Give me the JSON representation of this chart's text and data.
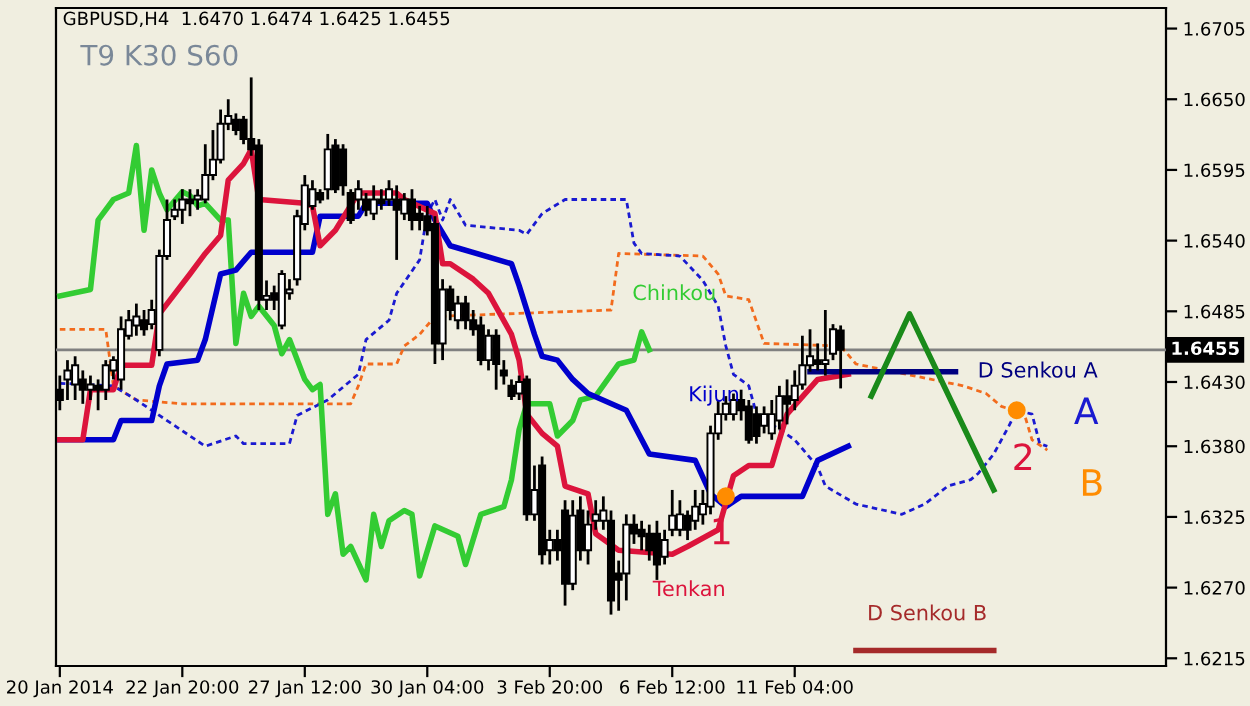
{
  "chart_data": {
    "type": "candlestick",
    "title": "GBPUSD,H4  1.6470 1.6474 1.6425 1.6455",
    "subtitle": "T9 K30 S60",
    "categories": [
      "20 Jan 2014",
      null,
      null,
      null,
      null,
      null,
      null,
      null,
      null,
      null,
      null,
      null,
      null,
      null,
      null,
      null,
      "22 Jan 20:00",
      null,
      null,
      null,
      null,
      null,
      null,
      null,
      null,
      null,
      null,
      null,
      null,
      null,
      null,
      null,
      "27 Jan 12:00",
      null,
      null,
      null,
      null,
      null,
      null,
      null,
      null,
      null,
      null,
      null,
      null,
      null,
      null,
      null,
      "30 Jan 04:00",
      null,
      null,
      null,
      null,
      null,
      null,
      null,
      null,
      null,
      null,
      null,
      null,
      null,
      null,
      null,
      "3 Feb 20:00",
      null,
      null,
      null,
      null,
      null,
      null,
      null,
      null,
      null,
      null,
      null,
      null,
      null,
      null,
      null,
      "6 Feb 12:00",
      null,
      null,
      null,
      null,
      null,
      null,
      null,
      null,
      null,
      null,
      null,
      null,
      null,
      null,
      null,
      "11 Feb 04:00",
      null,
      null,
      null,
      null,
      null,
      null,
      null,
      null,
      null,
      null,
      null,
      null,
      null,
      null,
      null,
      null,
      null,
      null,
      null,
      null,
      null,
      null,
      null,
      null,
      null,
      null,
      null,
      null,
      null,
      null,
      null,
      null,
      null,
      null,
      null,
      null,
      null,
      null,
      null,
      null,
      null,
      null,
      null,
      null,
      null,
      null,
      null,
      null
    ],
    "ohlc": [
      [
        1.6424,
        1.6435,
        1.6408,
        1.6416
      ],
      [
        1.6432,
        1.6447,
        1.6416,
        1.6439
      ],
      [
        1.6428,
        1.645,
        1.6416,
        1.6443
      ],
      [
        1.6432,
        1.6439,
        1.6413,
        1.6424
      ],
      [
        1.6424,
        1.6435,
        1.6416,
        1.6428
      ],
      [
        1.6427,
        1.6432,
        1.6408,
        1.6424
      ],
      [
        1.6424,
        1.6447,
        1.6416,
        1.6443
      ],
      [
        1.6439,
        1.645,
        1.6432,
        1.6447
      ],
      [
        1.6432,
        1.6481,
        1.6424,
        1.6471
      ],
      [
        1.6466,
        1.6486,
        1.6463,
        1.6478
      ],
      [
        1.6474,
        1.6491,
        1.6466,
        1.6481
      ],
      [
        1.6478,
        1.6486,
        1.6466,
        1.6471
      ],
      [
        1.6475,
        1.6494,
        1.6471,
        1.6486
      ],
      [
        1.6455,
        1.6533,
        1.645,
        1.6528
      ],
      [
        1.6528,
        1.6572,
        1.6525,
        1.6556
      ],
      [
        1.6559,
        1.6572,
        1.6556,
        1.6564
      ],
      [
        1.6564,
        1.658,
        1.6553,
        1.6572
      ],
      [
        1.6572,
        1.658,
        1.6559,
        1.6569
      ],
      [
        1.6572,
        1.658,
        1.6564,
        1.6575
      ],
      [
        1.6572,
        1.6615,
        1.6569,
        1.6591
      ],
      [
        1.6591,
        1.6626,
        1.6587,
        1.6603
      ],
      [
        1.6603,
        1.6642,
        1.66,
        1.6631
      ],
      [
        1.6631,
        1.665,
        1.6626,
        1.6637
      ],
      [
        1.6634,
        1.6639,
        1.6622,
        1.6626
      ],
      [
        1.6634,
        1.6637,
        1.6615,
        1.6619
      ],
      [
        1.6619,
        1.6667,
        1.6606,
        1.6611
      ],
      [
        1.6614,
        1.6619,
        1.6486,
        1.6494
      ],
      [
        1.6494,
        1.6509,
        1.6486,
        1.6497
      ],
      [
        1.6499,
        1.6505,
        1.6486,
        1.6494
      ],
      [
        1.6474,
        1.6517,
        1.6471,
        1.6514
      ],
      [
        1.6499,
        1.651,
        1.6494,
        1.6502
      ],
      [
        1.651,
        1.6564,
        1.6505,
        1.6559
      ],
      [
        1.6553,
        1.6591,
        1.6548,
        1.6583
      ],
      [
        1.6567,
        1.6587,
        1.6564,
        1.658
      ],
      [
        1.6577,
        1.658,
        1.6569,
        1.6572
      ],
      [
        1.658,
        1.6623,
        1.6572,
        1.6611
      ],
      [
        1.6614,
        1.6619,
        1.6577,
        1.658
      ],
      [
        1.6611,
        1.6615,
        1.6575,
        1.6583
      ],
      [
        1.6577,
        1.658,
        1.6553,
        1.6556
      ],
      [
        1.6572,
        1.6587,
        1.6564,
        1.658
      ],
      [
        1.6572,
        1.6577,
        1.6559,
        1.6564
      ],
      [
        1.6561,
        1.6583,
        1.6556,
        1.6572
      ],
      [
        1.6572,
        1.658,
        1.6564,
        1.6569
      ],
      [
        1.6572,
        1.6587,
        1.6567,
        1.658
      ],
      [
        1.6572,
        1.6583,
        1.6525,
        1.6564
      ],
      [
        1.6561,
        1.6577,
        1.6556,
        1.6572
      ],
      [
        1.6572,
        1.658,
        1.6548,
        1.6556
      ],
      [
        1.6561,
        1.6567,
        1.6548,
        1.6556
      ],
      [
        1.6559,
        1.6567,
        1.6544,
        1.6548
      ],
      [
        1.6553,
        1.6559,
        1.6444,
        1.646
      ],
      [
        1.646,
        1.651,
        1.6447,
        1.6502
      ],
      [
        1.6502,
        1.6505,
        1.6478,
        1.6486
      ],
      [
        1.6478,
        1.6497,
        1.6471,
        1.6491
      ],
      [
        1.6491,
        1.6497,
        1.6471,
        1.6478
      ],
      [
        1.6478,
        1.6486,
        1.6466,
        1.6471
      ],
      [
        1.6474,
        1.6481,
        1.6443,
        1.6447
      ],
      [
        1.6447,
        1.6471,
        1.6439,
        1.6466
      ],
      [
        1.6466,
        1.6471,
        1.6424,
        1.6444
      ],
      [
        1.6439,
        1.6447,
        1.6428,
        1.6435
      ],
      [
        1.6427,
        1.6432,
        1.6416,
        1.6419
      ],
      [
        1.6421,
        1.6435,
        1.6416,
        1.643
      ],
      [
        1.6432,
        1.6435,
        1.6322,
        1.6327
      ],
      [
        1.6327,
        1.6365,
        1.6322,
        1.6346
      ],
      [
        1.6365,
        1.6372,
        1.6288,
        1.6296
      ],
      [
        1.6299,
        1.6315,
        1.6288,
        1.6307
      ],
      [
        1.6307,
        1.6315,
        1.6291,
        1.6299
      ],
      [
        1.633,
        1.6338,
        1.6256,
        1.6273
      ],
      [
        1.6273,
        1.6338,
        1.6268,
        1.6326
      ],
      [
        1.633,
        1.6341,
        1.6291,
        1.6299
      ],
      [
        1.6299,
        1.633,
        1.6288,
        1.6319
      ],
      [
        1.6322,
        1.6338,
        1.6315,
        1.6327
      ],
      [
        1.6322,
        1.6341,
        1.6315,
        1.633
      ],
      [
        1.6322,
        1.633,
        1.6249,
        1.626
      ],
      [
        1.6281,
        1.6291,
        1.6252,
        1.6276
      ],
      [
        1.6281,
        1.6327,
        1.626,
        1.6319
      ],
      [
        1.6319,
        1.6327,
        1.6304,
        1.6312
      ],
      [
        1.6315,
        1.6322,
        1.6299,
        1.631
      ],
      [
        1.6312,
        1.6319,
        1.6291,
        1.6299
      ],
      [
        1.6312,
        1.6322,
        1.6276,
        1.6288
      ],
      [
        1.6294,
        1.6315,
        1.6288,
        1.6307
      ],
      [
        1.6315,
        1.6346,
        1.631,
        1.6326
      ],
      [
        1.6315,
        1.6338,
        1.631,
        1.6327
      ],
      [
        1.6326,
        1.633,
        1.6307,
        1.6315
      ],
      [
        1.6322,
        1.6346,
        1.6315,
        1.6333
      ],
      [
        1.6327,
        1.6346,
        1.6319,
        1.6335
      ],
      [
        1.6333,
        1.6396,
        1.6327,
        1.639
      ],
      [
        1.639,
        1.6416,
        1.6385,
        1.6405
      ],
      [
        1.6405,
        1.6419,
        1.64,
        1.6413
      ],
      [
        1.6405,
        1.6421,
        1.64,
        1.6416
      ],
      [
        1.6416,
        1.6424,
        1.64,
        1.6408
      ],
      [
        1.6411,
        1.6416,
        1.6382,
        1.6385
      ],
      [
        1.6405,
        1.6411,
        1.6382,
        1.6388
      ],
      [
        1.6396,
        1.6411,
        1.639,
        1.6405
      ],
      [
        1.639,
        1.6416,
        1.6385,
        1.6405
      ],
      [
        1.64,
        1.6427,
        1.6393,
        1.6419
      ],
      [
        1.6419,
        1.6432,
        1.6397,
        1.6413
      ],
      [
        1.6416,
        1.6439,
        1.6408,
        1.6427
      ],
      [
        1.6428,
        1.6466,
        1.6424,
        1.6443
      ],
      [
        1.6443,
        1.6471,
        1.6438,
        1.645
      ],
      [
        1.6447,
        1.646,
        1.6439,
        1.6444
      ],
      [
        1.6444,
        1.6486,
        1.6435,
        1.6447
      ],
      [
        1.6452,
        1.6475,
        1.6447,
        1.6471
      ],
      [
        1.647,
        1.6474,
        1.6425,
        1.6455
      ],
      null,
      null,
      null,
      null,
      null,
      null,
      null,
      null,
      null,
      null,
      null,
      null,
      null,
      null,
      null,
      null,
      null,
      null,
      null,
      null,
      null,
      null,
      null,
      null,
      null,
      null,
      null,
      null,
      null,
      null,
      null,
      null,
      null,
      null,
      null,
      null,
      null,
      null,
      null,
      null,
      null,
      null
    ],
    "series": [
      {
        "type": "line",
        "color": "#f26b1d",
        "line_style": "dashed",
        "values": [
          1.6471,
          null,
          null,
          null,
          null,
          null,
          1.6471,
          1.6427,
          null,
          null,
          1.6416,
          null,
          null,
          null,
          null,
          null,
          1.6413,
          null,
          null,
          null,
          null,
          null,
          null,
          null,
          null,
          null,
          null,
          null,
          null,
          null,
          null,
          null,
          null,
          null,
          null,
          null,
          null,
          null,
          1.6413,
          1.6427,
          1.6444,
          null,
          null,
          null,
          1.6444,
          1.6458,
          null,
          1.6467,
          null,
          1.6481,
          null,
          null,
          null,
          null,
          null,
          null,
          null,
          null,
          null,
          null,
          null,
          null,
          null,
          null,
          null,
          null,
          null,
          null,
          null,
          null,
          null,
          null,
          1.6486,
          1.653,
          null,
          null,
          null,
          null,
          null,
          null,
          null,
          null,
          null,
          null,
          1.6528,
          null,
          1.6514,
          1.6497,
          null,
          null,
          1.6494,
          null,
          1.646,
          null,
          null,
          null,
          null,
          null,
          null,
          null,
          null,
          null,
          1.6458,
          null,
          1.6444,
          null,
          null,
          null,
          null,
          null,
          null,
          null,
          null,
          null,
          null,
          null,
          null,
          null,
          1.6427,
          null,
          null,
          1.6421,
          null,
          1.6411,
          null,
          null,
          1.6405,
          1.6385,
          null,
          1.6377,
          null,
          null,
          null,
          null,
          null,
          null,
          null,
          null,
          null,
          null,
          null,
          null,
          null,
          null,
          null
        ]
      },
      {
        "type": "line",
        "color": "#1a1ad0",
        "line_style": "dashed",
        "values": [
          1.6429,
          null,
          null,
          null,
          null,
          null,
          null,
          1.6427,
          null,
          null,
          1.6416,
          null,
          null,
          null,
          null,
          1.6396,
          null,
          null,
          null,
          1.638,
          null,
          null,
          null,
          1.6388,
          1.6382,
          null,
          null,
          null,
          null,
          null,
          1.6382,
          1.6404,
          null,
          null,
          null,
          1.6416,
          null,
          null,
          null,
          1.6436,
          1.6463,
          null,
          null,
          1.6478,
          1.6499,
          null,
          null,
          1.6525,
          1.6561,
          1.6572,
          1.6556,
          1.6572,
          null,
          1.6552,
          null,
          null,
          null,
          null,
          null,
          null,
          1.6548,
          1.6545,
          null,
          1.6561,
          null,
          null,
          1.6572,
          null,
          null,
          null,
          null,
          null,
          null,
          null,
          1.6572,
          1.6538,
          1.653,
          null,
          null,
          null,
          null,
          1.6528,
          null,
          null,
          1.6509,
          null,
          1.6489,
          1.6458,
          1.6436,
          null,
          1.6427,
          1.6405,
          null,
          null,
          null,
          null,
          1.6385,
          null,
          null,
          1.6364,
          1.6349,
          null,
          null,
          null,
          1.6335,
          null,
          null,
          null,
          null,
          null,
          1.6327,
          null,
          null,
          1.6335,
          null,
          null,
          1.6349,
          null,
          null,
          1.6354,
          1.6359,
          null,
          1.6374,
          null,
          1.6396,
          1.6408,
          null,
          1.6405,
          1.6382,
          1.638,
          null,
          null,
          null,
          null,
          null,
          null,
          null,
          null,
          null,
          null,
          null,
          null,
          null,
          null,
          null
        ]
      },
      {
        "type": "line",
        "name": "Chinkou",
        "color": "#33cc33",
        "line_style": "solid",
        "values": [
          1.6497,
          null,
          null,
          null,
          1.6502,
          1.6556,
          null,
          1.6572,
          null,
          1.6577,
          1.6614,
          1.6548,
          1.6595,
          1.6577,
          1.6564,
          null,
          1.6578,
          1.6575,
          1.6567,
          1.6569,
          null,
          1.6556,
          1.6556,
          1.646,
          1.6499,
          1.6481,
          1.6489,
          null,
          1.6474,
          1.6452,
          1.6463,
          null,
          1.6432,
          1.6424,
          1.6428,
          1.6327,
          1.6343,
          1.6296,
          1.6302,
          null,
          1.6276,
          1.6327,
          1.6302,
          1.6322,
          null,
          1.633,
          1.6327,
          1.6279,
          null,
          1.6318,
          null,
          null,
          1.631,
          1.6288,
          null,
          1.6327,
          null,
          null,
          1.6333,
          1.6354,
          1.6393,
          1.6413,
          null,
          null,
          1.6413,
          1.6388,
          null,
          1.64,
          1.6416,
          null,
          1.6419,
          null,
          null,
          1.6444,
          null,
          1.6447,
          1.6469,
          1.6455,
          null,
          null,
          null,
          null,
          null,
          null,
          null,
          null,
          null,
          null,
          null,
          null,
          null,
          null,
          null,
          null,
          null,
          null,
          null,
          null,
          null,
          null,
          null,
          null,
          null,
          null,
          null,
          null,
          null,
          null,
          null,
          null,
          null,
          null,
          null,
          null,
          null,
          null,
          null,
          null,
          null,
          null,
          null,
          null,
          null,
          null,
          null,
          null,
          null,
          null,
          null,
          null,
          null,
          null,
          null,
          null,
          null,
          null,
          null,
          null,
          null,
          null,
          null,
          null,
          null,
          null,
          null
        ]
      },
      {
        "type": "line",
        "name": "Kijun",
        "color": "#0000cc",
        "line_style": "solid",
        "values": [
          1.6385,
          null,
          null,
          null,
          null,
          null,
          null,
          1.6385,
          1.64,
          null,
          null,
          null,
          1.64,
          1.6427,
          1.6444,
          null,
          null,
          null,
          1.6447,
          1.6463,
          null,
          1.6514,
          null,
          1.6517,
          null,
          1.6531,
          null,
          null,
          null,
          null,
          null,
          null,
          null,
          1.6531,
          1.6559,
          null,
          null,
          null,
          null,
          1.6559,
          1.6569,
          null,
          null,
          null,
          null,
          null,
          null,
          null,
          1.6569,
          1.6556,
          null,
          1.6536,
          null,
          null,
          null,
          null,
          null,
          null,
          null,
          1.6522,
          1.6505,
          null,
          1.6467,
          1.645,
          null,
          1.6447,
          null,
          1.6432,
          null,
          1.6421,
          null,
          null,
          null,
          null,
          1.6408,
          null,
          null,
          1.6374,
          null,
          null,
          null,
          null,
          null,
          1.6369,
          null,
          1.6343,
          null,
          1.6333,
          null,
          1.6341,
          null,
          null,
          null,
          null,
          null,
          null,
          null,
          1.6341,
          null,
          1.6369,
          null,
          null,
          null,
          1.638,
          null,
          null,
          null,
          null,
          null,
          null,
          null,
          null,
          null,
          null,
          null,
          null,
          null,
          null,
          null,
          null,
          null,
          null,
          null,
          null,
          null,
          null,
          null,
          null,
          null,
          null,
          null,
          null,
          null,
          null,
          null,
          null,
          null,
          null,
          null,
          null,
          null,
          null,
          null,
          null,
          null
        ]
      },
      {
        "type": "line",
        "name": "Tenkan",
        "color": "#dc143c",
        "line_style": "solid",
        "values": [
          1.6385,
          null,
          null,
          1.6385,
          1.6424,
          null,
          null,
          1.6424,
          1.6443,
          null,
          null,
          null,
          1.6443,
          1.6483,
          null,
          null,
          null,
          1.6514,
          null,
          1.653,
          null,
          1.6544,
          1.6587,
          null,
          1.66,
          1.6611,
          1.6572,
          null,
          null,
          null,
          null,
          null,
          1.6569,
          1.6567,
          1.6536,
          null,
          1.6548,
          null,
          null,
          1.6577,
          null,
          null,
          null,
          null,
          1.6577,
          1.6572,
          null,
          null,
          null,
          1.6561,
          1.6522,
          1.6522,
          null,
          null,
          1.651,
          null,
          1.6499,
          null,
          null,
          1.6467,
          1.6447,
          1.6405,
          null,
          1.639,
          null,
          1.638,
          1.6349,
          null,
          null,
          1.6343,
          1.6312,
          null,
          null,
          1.6299,
          null,
          null,
          null,
          null,
          null,
          null,
          1.6296,
          null,
          1.6302,
          null,
          null,
          null,
          1.6315,
          null,
          1.6357,
          null,
          1.6365,
          null,
          null,
          1.6365,
          null,
          1.6405,
          null,
          null,
          null,
          1.6432,
          null,
          null,
          null,
          1.6436,
          null,
          null,
          null,
          null,
          null,
          null,
          null,
          null,
          null,
          null,
          null,
          null,
          null,
          null,
          null,
          null,
          null,
          null,
          null,
          null,
          null,
          null,
          null,
          null,
          null,
          null,
          null,
          null,
          null,
          null,
          null,
          null,
          null,
          null,
          null,
          null,
          null,
          null,
          null,
          null,
          null
        ]
      },
      {
        "type": "line",
        "name": "D Senkou A",
        "color": "#000080",
        "line_style": "solid",
        "values": [
          null,
          null,
          null,
          null,
          null,
          null,
          null,
          null,
          null,
          null,
          null,
          null,
          null,
          null,
          null,
          null,
          null,
          null,
          null,
          null,
          null,
          null,
          null,
          null,
          null,
          null,
          null,
          null,
          null,
          null,
          null,
          null,
          null,
          null,
          null,
          null,
          null,
          null,
          null,
          null,
          null,
          null,
          null,
          null,
          null,
          null,
          null,
          null,
          null,
          null,
          null,
          null,
          null,
          null,
          null,
          null,
          null,
          null,
          null,
          null,
          null,
          null,
          null,
          null,
          null,
          null,
          null,
          null,
          null,
          null,
          null,
          null,
          null,
          null,
          null,
          null,
          null,
          null,
          null,
          null,
          null,
          null,
          null,
          null,
          null,
          null,
          null,
          null,
          null,
          null,
          null,
          null,
          null,
          null,
          null,
          null,
          null,
          null,
          1.6438,
          null,
          null,
          null,
          null,
          null,
          null,
          null,
          null,
          null,
          null,
          null,
          null,
          null,
          null,
          null,
          null,
          null,
          null,
          1.6438,
          null,
          null,
          null,
          null,
          null,
          null,
          null,
          null,
          null,
          null,
          null,
          null,
          null,
          null,
          null,
          null,
          null,
          null,
          null,
          null,
          null,
          null,
          null,
          null,
          null,
          null,
          null
        ]
      },
      {
        "type": "line",
        "name": "D Senkou B",
        "color": "#a52a2a",
        "line_style": "solid",
        "values": [
          null,
          null,
          null,
          null,
          null,
          null,
          null,
          null,
          null,
          null,
          null,
          null,
          null,
          null,
          null,
          null,
          null,
          null,
          null,
          null,
          null,
          null,
          null,
          null,
          null,
          null,
          null,
          null,
          null,
          null,
          null,
          null,
          null,
          null,
          null,
          null,
          null,
          null,
          null,
          null,
          null,
          null,
          null,
          null,
          null,
          null,
          null,
          null,
          null,
          null,
          null,
          null,
          null,
          null,
          null,
          null,
          null,
          null,
          null,
          null,
          null,
          null,
          null,
          null,
          null,
          null,
          null,
          null,
          null,
          null,
          null,
          null,
          null,
          null,
          null,
          null,
          null,
          null,
          null,
          null,
          null,
          null,
          null,
          null,
          null,
          null,
          null,
          null,
          null,
          null,
          null,
          null,
          null,
          null,
          null,
          null,
          null,
          null,
          null,
          null,
          null,
          null,
          null,
          null,
          1.6221,
          null,
          null,
          null,
          null,
          null,
          null,
          null,
          null,
          null,
          null,
          null,
          null,
          null,
          null,
          null,
          null,
          null,
          1.6221,
          null,
          null,
          null,
          null,
          null,
          null,
          null,
          null,
          null,
          null,
          null,
          null,
          null,
          null,
          null,
          null,
          null,
          null,
          null,
          null,
          null,
          null
        ]
      },
      {
        "type": "line",
        "color": "#1a8a1a",
        "line_style": "solid",
        "values": [
          null,
          null,
          null,
          null,
          null,
          null,
          null,
          null,
          null,
          null,
          null,
          null,
          null,
          null,
          null,
          null,
          null,
          null,
          null,
          null,
          null,
          null,
          null,
          null,
          null,
          null,
          null,
          null,
          null,
          null,
          null,
          null,
          null,
          null,
          null,
          null,
          null,
          null,
          null,
          null,
          null,
          null,
          null,
          null,
          null,
          null,
          null,
          null,
          null,
          null,
          null,
          null,
          null,
          null,
          null,
          null,
          null,
          null,
          null,
          null,
          null,
          null,
          null,
          null,
          null,
          null,
          null,
          null,
          null,
          null,
          null,
          null,
          null,
          null,
          null,
          null,
          null,
          null,
          null,
          null,
          null,
          null,
          null,
          null,
          null,
          null,
          null,
          null,
          null,
          null,
          null,
          null,
          null,
          null,
          null,
          null,
          null,
          null,
          null,
          null,
          null,
          null,
          null,
          null,
          null,
          null,
          1.6419,
          null,
          null,
          null,
          null,
          1.6483,
          null,
          null,
          null,
          null,
          null,
          null,
          null,
          null,
          null,
          null,
          1.6346,
          null,
          null,
          null,
          null,
          null,
          null,
          null,
          null,
          null,
          null,
          null,
          null,
          null,
          null,
          null,
          null,
          null,
          null,
          null,
          null,
          null,
          null
        ]
      },
      {
        "type": "scatter",
        "color": "#ff8c00",
        "marker": "circle",
        "values": [
          null,
          null,
          null,
          null,
          null,
          null,
          null,
          null,
          null,
          null,
          null,
          null,
          null,
          null,
          null,
          null,
          null,
          null,
          null,
          null,
          null,
          null,
          null,
          null,
          null,
          null,
          null,
          null,
          null,
          null,
          null,
          null,
          null,
          null,
          null,
          null,
          null,
          null,
          null,
          null,
          null,
          null,
          null,
          null,
          null,
          null,
          null,
          null,
          null,
          null,
          null,
          null,
          null,
          null,
          null,
          null,
          null,
          null,
          null,
          null,
          null,
          null,
          null,
          null,
          null,
          null,
          null,
          null,
          null,
          null,
          null,
          null,
          null,
          null,
          null,
          null,
          null,
          null,
          null,
          null,
          null,
          null,
          null,
          null,
          null,
          null,
          null,
          1.6341,
          null,
          null,
          null,
          null,
          null,
          null,
          null,
          null,
          null,
          null,
          null,
          null,
          null,
          null,
          null,
          null,
          null,
          null,
          null,
          null,
          null,
          null,
          null,
          null,
          null,
          null,
          null,
          null,
          null,
          null,
          null,
          null,
          null,
          null,
          null,
          null,
          null,
          1.6408,
          null,
          null,
          null,
          null,
          null,
          null,
          null,
          null,
          null,
          null,
          null,
          null,
          null,
          null,
          null,
          null,
          null,
          null,
          null
        ]
      }
    ],
    "annotations": [
      "1",
      "2",
      "A",
      "B"
    ],
    "ref_lines": [
      {
        "axis": "y",
        "value": 1.6455,
        "label": "1.6455",
        "color": "#808080"
      }
    ],
    "ylim": [
      1.6209,
      1.6721
    ],
    "yticks": [
      {
        "value": 1.6215,
        "label": "1.6215"
      },
      {
        "value": 1.627,
        "label": "1.6270"
      },
      {
        "value": 1.6325,
        "label": "1.6325"
      },
      {
        "value": 1.638,
        "label": "1.6380"
      },
      {
        "value": 1.643,
        "label": "1.6430"
      },
      {
        "value": 1.6485,
        "label": "1.6485"
      },
      {
        "value": 1.654,
        "label": "1.6540"
      },
      {
        "value": 1.6595,
        "label": "1.6595"
      },
      {
        "value": 1.665,
        "label": "1.6650"
      },
      {
        "value": 1.6705,
        "label": "1.6705"
      }
    ]
  }
}
